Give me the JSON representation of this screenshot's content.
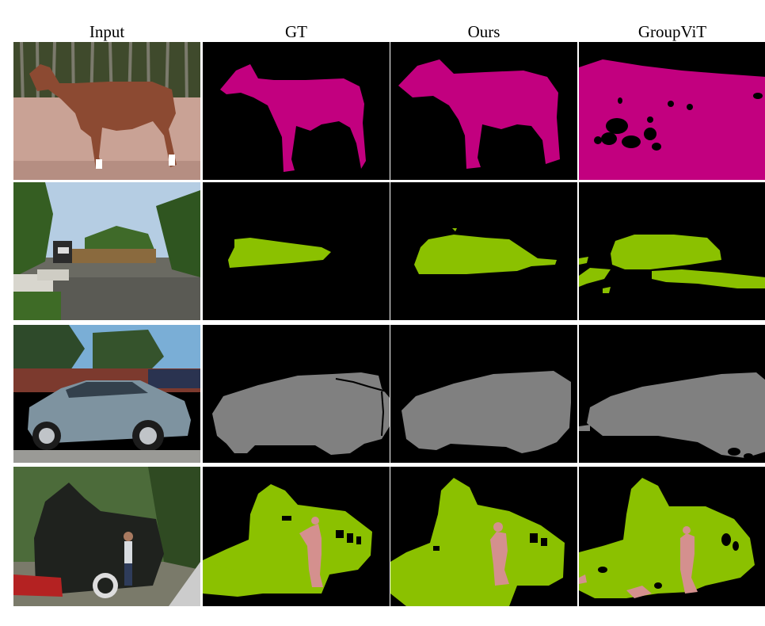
{
  "figure": {
    "headers": [
      "Input",
      "GT",
      "Ours",
      "GroupViT"
    ]
  },
  "colors": {
    "horse": "#c2007f",
    "train": "#8bc100",
    "car": "#808080",
    "person": "#d4908e",
    "background": "#000000"
  },
  "rows": [
    {
      "subject": "horse",
      "classes": [
        "horse"
      ]
    },
    {
      "subject": "train",
      "classes": [
        "train"
      ]
    },
    {
      "subject": "car",
      "classes": [
        "car"
      ]
    },
    {
      "subject": "locomotive-and-person",
      "classes": [
        "train",
        "person"
      ]
    }
  ]
}
